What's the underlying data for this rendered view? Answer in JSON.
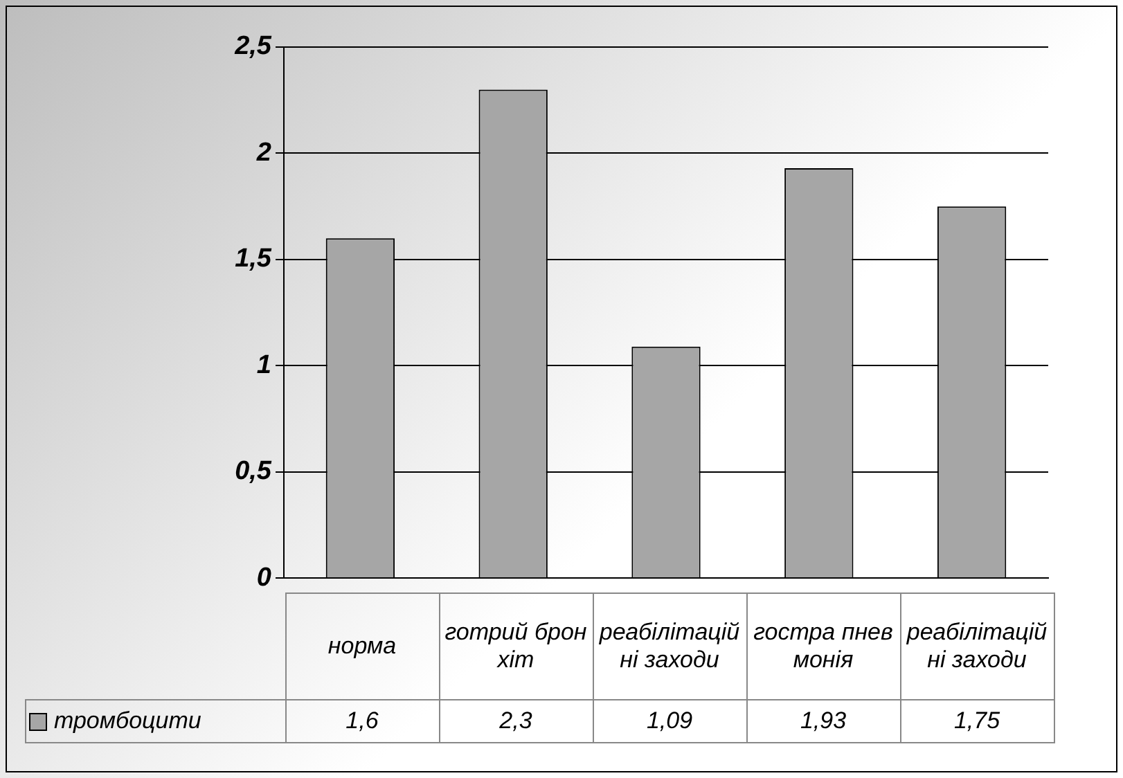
{
  "chart_data": {
    "type": "bar",
    "categories": [
      "норма",
      "готрий бронхіт",
      "реабілітаційні заходи",
      "гостра пневмонія",
      "реабілітаційні заходи"
    ],
    "series": [
      {
        "name": "тромбоцити",
        "color": "#a6a6a6",
        "values": [
          1.6,
          2.3,
          1.09,
          1.93,
          1.75
        ],
        "value_labels": [
          "1,6",
          "2,3",
          "1,09",
          "1,93",
          "1,75"
        ]
      }
    ],
    "ylim": [
      0,
      2.5
    ],
    "yticks": [
      {
        "value": 0,
        "label": "0"
      },
      {
        "value": 0.5,
        "label": "0,5"
      },
      {
        "value": 1,
        "label": "1"
      },
      {
        "value": 1.5,
        "label": "1,5"
      },
      {
        "value": 2,
        "label": "2"
      },
      {
        "value": 2.5,
        "label": "2,5"
      }
    ],
    "grid": "y",
    "legend": "bottom"
  }
}
